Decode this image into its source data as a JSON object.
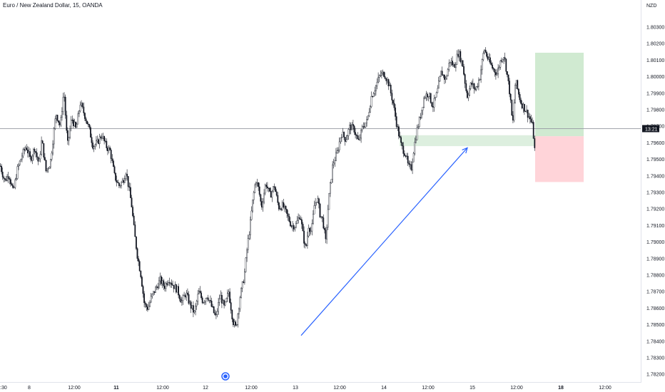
{
  "header": {
    "symbol_title": "Euro / New Zealand Dollar, 15, OANDA",
    "currency": "NZD"
  },
  "colors": {
    "candle": "#131722",
    "arrow": "#2962ff",
    "target_zone": "#c8e6c9",
    "stop_zone": "#ffcdd2",
    "demand_zone": "#d7ecd9",
    "price_line": "#9598a1",
    "event_marker": "#2962ff"
  },
  "price_badge": {
    "label": "13:21"
  },
  "chart_data": {
    "type": "candlestick",
    "title": "Euro / New Zealand Dollar, 15, OANDA",
    "y_axis": {
      "label": "NZD",
      "ticks": [
        "1.80300",
        "1.80200",
        "1.80100",
        "1.80000",
        "1.79900",
        "1.79800",
        "1.79700",
        "1.79600",
        "1.79500",
        "1.79400",
        "1.79300",
        "1.79200",
        "1.79100",
        "1.79000",
        "1.78900",
        "1.78800",
        "1.78700",
        "1.78600",
        "1.78500",
        "1.78400",
        "1.78300",
        "1.78200"
      ],
      "range": [
        1.78175,
        1.80355
      ]
    },
    "x_axis": {
      "ticks": [
        "8",
        "12:00",
        "11",
        "12:00",
        "12",
        "12:00",
        "13",
        "12:00",
        "14",
        "12:00",
        "15",
        "12:00",
        "18",
        "12:00"
      ],
      "bold_ticks": [
        "11",
        "18"
      ],
      "partial_first_label": ":30"
    },
    "series_path": [
      [
        0,
        1.7946
      ],
      [
        6,
        1.7937
      ],
      [
        12,
        1.7941
      ],
      [
        18,
        1.793
      ],
      [
        24,
        1.7944
      ],
      [
        30,
        1.7952
      ],
      [
        36,
        1.7958
      ],
      [
        42,
        1.795
      ],
      [
        48,
        1.7957
      ],
      [
        54,
        1.7947
      ],
      [
        58,
        1.7962
      ],
      [
        64,
        1.7943
      ],
      [
        70,
        1.7948
      ],
      [
        78,
        1.7978
      ],
      [
        84,
        1.797
      ],
      [
        89,
        1.7992
      ],
      [
        94,
        1.7958
      ],
      [
        100,
        1.7975
      ],
      [
        106,
        1.7968
      ],
      [
        112,
        1.7984
      ],
      [
        118,
        1.7977
      ],
      [
        124,
        1.7969
      ],
      [
        130,
        1.7958
      ],
      [
        136,
        1.796
      ],
      [
        142,
        1.7965
      ],
      [
        148,
        1.7958
      ],
      [
        154,
        1.7955
      ],
      [
        160,
        1.794
      ],
      [
        166,
        1.7934
      ],
      [
        172,
        1.7937
      ],
      [
        176,
        1.7943
      ],
      [
        180,
        1.7933
      ],
      [
        184,
        1.7922
      ],
      [
        188,
        1.7905
      ],
      [
        192,
        1.7892
      ],
      [
        197,
        1.788
      ],
      [
        202,
        1.7862
      ],
      [
        207,
        1.786
      ],
      [
        212,
        1.7867
      ],
      [
        218,
        1.7872
      ],
      [
        224,
        1.7877
      ],
      [
        230,
        1.7873
      ],
      [
        236,
        1.7878
      ],
      [
        242,
        1.7874
      ],
      [
        248,
        1.7871
      ],
      [
        254,
        1.7864
      ],
      [
        260,
        1.7869
      ],
      [
        266,
        1.7862
      ],
      [
        272,
        1.7857
      ],
      [
        278,
        1.787
      ],
      [
        284,
        1.7864
      ],
      [
        290,
        1.7868
      ],
      [
        296,
        1.7861
      ],
      [
        302,
        1.7854
      ],
      [
        308,
        1.7868
      ],
      [
        314,
        1.786
      ],
      [
        320,
        1.787
      ],
      [
        326,
        1.7852
      ],
      [
        330,
        1.7848
      ],
      [
        336,
        1.7867
      ],
      [
        342,
        1.788
      ],
      [
        346,
        1.7897
      ],
      [
        350,
        1.791
      ],
      [
        354,
        1.7926
      ],
      [
        358,
        1.7938
      ],
      [
        362,
        1.7932
      ],
      [
        366,
        1.7921
      ],
      [
        372,
        1.7936
      ],
      [
        378,
        1.7928
      ],
      [
        384,
        1.7934
      ],
      [
        390,
        1.7921
      ],
      [
        396,
        1.7922
      ],
      [
        402,
        1.7916
      ],
      [
        408,
        1.791
      ],
      [
        414,
        1.791
      ],
      [
        420,
        1.7917
      ],
      [
        424,
        1.7905
      ],
      [
        428,
        1.7895
      ],
      [
        432,
        1.791
      ],
      [
        436,
        1.7906
      ],
      [
        440,
        1.7922
      ],
      [
        444,
        1.7927
      ],
      [
        448,
        1.7917
      ],
      [
        452,
        1.7913
      ],
      [
        456,
        1.79
      ],
      [
        460,
        1.7925
      ],
      [
        466,
        1.7947
      ],
      [
        472,
        1.7954
      ],
      [
        478,
        1.7966
      ],
      [
        484,
        1.7962
      ],
      [
        490,
        1.797
      ],
      [
        496,
        1.7968
      ],
      [
        502,
        1.796
      ],
      [
        508,
        1.797
      ],
      [
        514,
        1.7973
      ],
      [
        520,
        1.7988
      ],
      [
        526,
        1.7994
      ],
      [
        532,
        1.8001
      ],
      [
        538,
        1.8002
      ],
      [
        544,
        1.7996
      ],
      [
        550,
        1.7985
      ],
      [
        556,
        1.797
      ],
      [
        562,
        1.7958
      ],
      [
        568,
        1.7953
      ],
      [
        572,
        1.7945
      ],
      [
        576,
        1.7945
      ],
      [
        580,
        1.7958
      ],
      [
        584,
        1.7968
      ],
      [
        588,
        1.7975
      ],
      [
        594,
        1.7988
      ],
      [
        600,
        1.799
      ],
      [
        606,
        1.7982
      ],
      [
        612,
        1.799
      ],
      [
        618,
        1.8003
      ],
      [
        624,
        1.7998
      ],
      [
        630,
        1.801
      ],
      [
        636,
        1.8006
      ],
      [
        642,
        1.8015
      ],
      [
        648,
        1.8007
      ],
      [
        654,
        1.7988
      ],
      [
        660,
        1.7996
      ],
      [
        666,
        1.7992
      ],
      [
        672,
        1.8
      ],
      [
        678,
        1.8017
      ],
      [
        684,
        1.801
      ],
      [
        690,
        1.8005
      ],
      [
        696,
        1.8002
      ],
      [
        702,
        1.8011
      ],
      [
        706,
        1.8013
      ],
      [
        710,
        1.8002
      ],
      [
        714,
        1.799
      ],
      [
        718,
        1.797
      ],
      [
        722,
        1.7998
      ],
      [
        726,
        1.799
      ],
      [
        730,
        1.7984
      ],
      [
        736,
        1.798
      ],
      [
        742,
        1.7975
      ],
      [
        746,
        1.797
      ],
      [
        750,
        1.795
      ]
    ],
    "current_price_line": 1.79686,
    "annotations": [
      {
        "type": "demand_zone",
        "x_start": 560,
        "x_end": 752,
        "y_top": 1.79646,
        "y_bottom": 1.7958
      },
      {
        "type": "target_zone",
        "x_start": 750,
        "x_end": 818,
        "y_top": 1.80145,
        "y_bottom": 1.7964
      },
      {
        "type": "stop_zone",
        "x_start": 750,
        "x_end": 818,
        "y_top": 1.7964,
        "y_bottom": 1.79363
      },
      {
        "type": "trend_arrow",
        "x_start": 422,
        "y_start": 1.78435,
        "x_end": 655,
        "y_end": 1.7957
      }
    ],
    "event_marker": {
      "x": 316,
      "label": ""
    },
    "grid": false,
    "legend": "none"
  }
}
